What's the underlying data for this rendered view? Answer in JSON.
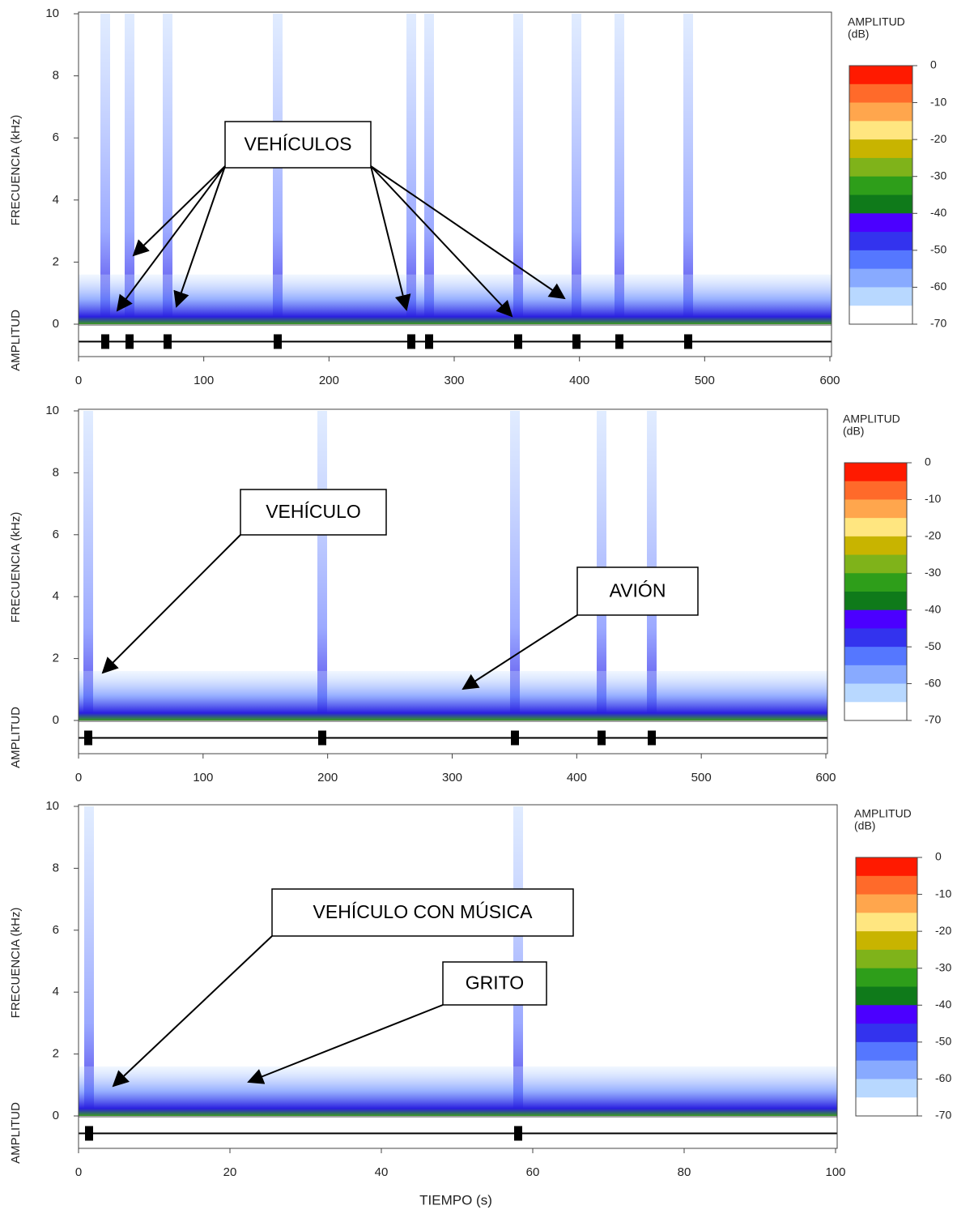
{
  "chart_data": [
    {
      "type": "spectrogram",
      "ylabel": "FRECUENCIA (kHz)",
      "ylabel2": "AMPLITUD",
      "xlim": [
        0,
        600
      ],
      "xticks": [
        0,
        100,
        200,
        300,
        400,
        500,
        600
      ],
      "ylim": [
        0,
        10
      ],
      "yticks": [
        0,
        2,
        4,
        6,
        8,
        10
      ],
      "colorbar": {
        "title": "AMPLITUD",
        "units": "(dB)",
        "clim": [
          -70,
          0
        ],
        "ticks": [
          0,
          -10,
          -20,
          -30,
          -40,
          -50,
          -60,
          -70
        ],
        "colors": [
          "#ff1a00",
          "#ff6a2a",
          "#ffa64d",
          "#ffe680",
          "#c8b400",
          "#7fb31a",
          "#2e9e1a",
          "#0f7a1a",
          "#4b00ff",
          "#3333ee",
          "#5577ff",
          "#88aaff",
          "#b8d8ff",
          "#ffffff"
        ]
      },
      "annotations": [
        {
          "text": "VEHÍCULOS"
        }
      ]
    },
    {
      "type": "spectrogram",
      "ylabel": "FRECUENCIA (kHz)",
      "ylabel2": "AMPLITUD",
      "xlim": [
        0,
        600
      ],
      "xticks": [
        0,
        100,
        200,
        300,
        400,
        500,
        600
      ],
      "ylim": [
        0,
        10
      ],
      "yticks": [
        0,
        2,
        4,
        6,
        8,
        10
      ],
      "colorbar": {
        "title": "AMPLITUD",
        "units": "(dB)",
        "clim": [
          -70,
          0
        ],
        "ticks": [
          0,
          -10,
          -20,
          -30,
          -40,
          -50,
          -60,
          -70
        ],
        "colors": [
          "#ff1a00",
          "#ff6a2a",
          "#ffa64d",
          "#ffe680",
          "#c8b400",
          "#7fb31a",
          "#2e9e1a",
          "#0f7a1a",
          "#4b00ff",
          "#3333ee",
          "#5577ff",
          "#88aaff",
          "#b8d8ff",
          "#ffffff"
        ]
      },
      "annotations": [
        {
          "text": "VEHÍCULO"
        },
        {
          "text": "AVIÓN"
        }
      ]
    },
    {
      "type": "spectrogram",
      "ylabel": "FRECUENCIA (kHz)",
      "ylabel2": "AMPLITUD",
      "xlabel": "TIEMPO (s)",
      "xlim": [
        0,
        100
      ],
      "xticks": [
        0,
        20,
        40,
        60,
        80,
        100
      ],
      "ylim": [
        0,
        10
      ],
      "yticks": [
        0,
        2,
        4,
        6,
        8,
        10
      ],
      "colorbar": {
        "title": "AMPLITUD",
        "units": "(dB)",
        "clim": [
          -70,
          0
        ],
        "ticks": [
          0,
          -10,
          -20,
          -30,
          -40,
          -50,
          -60,
          -70
        ],
        "colors": [
          "#ff1a00",
          "#ff6a2a",
          "#ffa64d",
          "#ffe680",
          "#c8b400",
          "#7fb31a",
          "#2e9e1a",
          "#0f7a1a",
          "#4b00ff",
          "#3333ee",
          "#5577ff",
          "#88aaff",
          "#b8d8ff",
          "#ffffff"
        ]
      },
      "annotations": [
        {
          "text": "VEHÍCULO CON MÚSICA"
        },
        {
          "text": "GRITO"
        }
      ]
    }
  ]
}
